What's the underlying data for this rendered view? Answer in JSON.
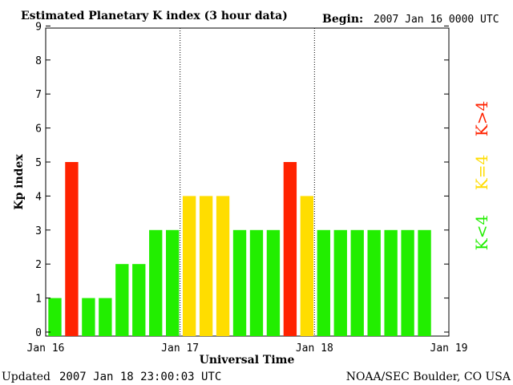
{
  "chart_data": {
    "type": "bar",
    "title": "Estimated Planetary K index (3 hour data)",
    "begin_label": "Begin:",
    "begin_value": "2007 Jan 16 0000 UTC",
    "ylabel": "Kp index",
    "xlabel": "Universal Time",
    "ylim": [
      0,
      9
    ],
    "yticks": [
      "0",
      "1",
      "2",
      "3",
      "4",
      "5",
      "6",
      "7",
      "8",
      "9"
    ],
    "xticks": [
      "Jan 16",
      "Jan 17",
      "Jan 18",
      "Jan 19"
    ],
    "bars_per_day": 8,
    "values": [
      1,
      5,
      1,
      1,
      2,
      2,
      3,
      3,
      4,
      4,
      4,
      3,
      3,
      3,
      5,
      4,
      3,
      3,
      3,
      3,
      3,
      3,
      3
    ],
    "colors": {
      "below": "#22ee00",
      "equal": "#ffdd00",
      "above": "#ff2200"
    },
    "legend": [
      {
        "label": "K<4",
        "color": "#22ee00"
      },
      {
        "label": "K=4",
        "color": "#ffdd00"
      },
      {
        "label": "K>4",
        "color": "#ff2200"
      }
    ]
  },
  "footer": {
    "updated_label": "Updated",
    "updated_value": "2007 Jan 18 23:00:03 UTC",
    "source": "NOAA/SEC Boulder, CO USA"
  }
}
